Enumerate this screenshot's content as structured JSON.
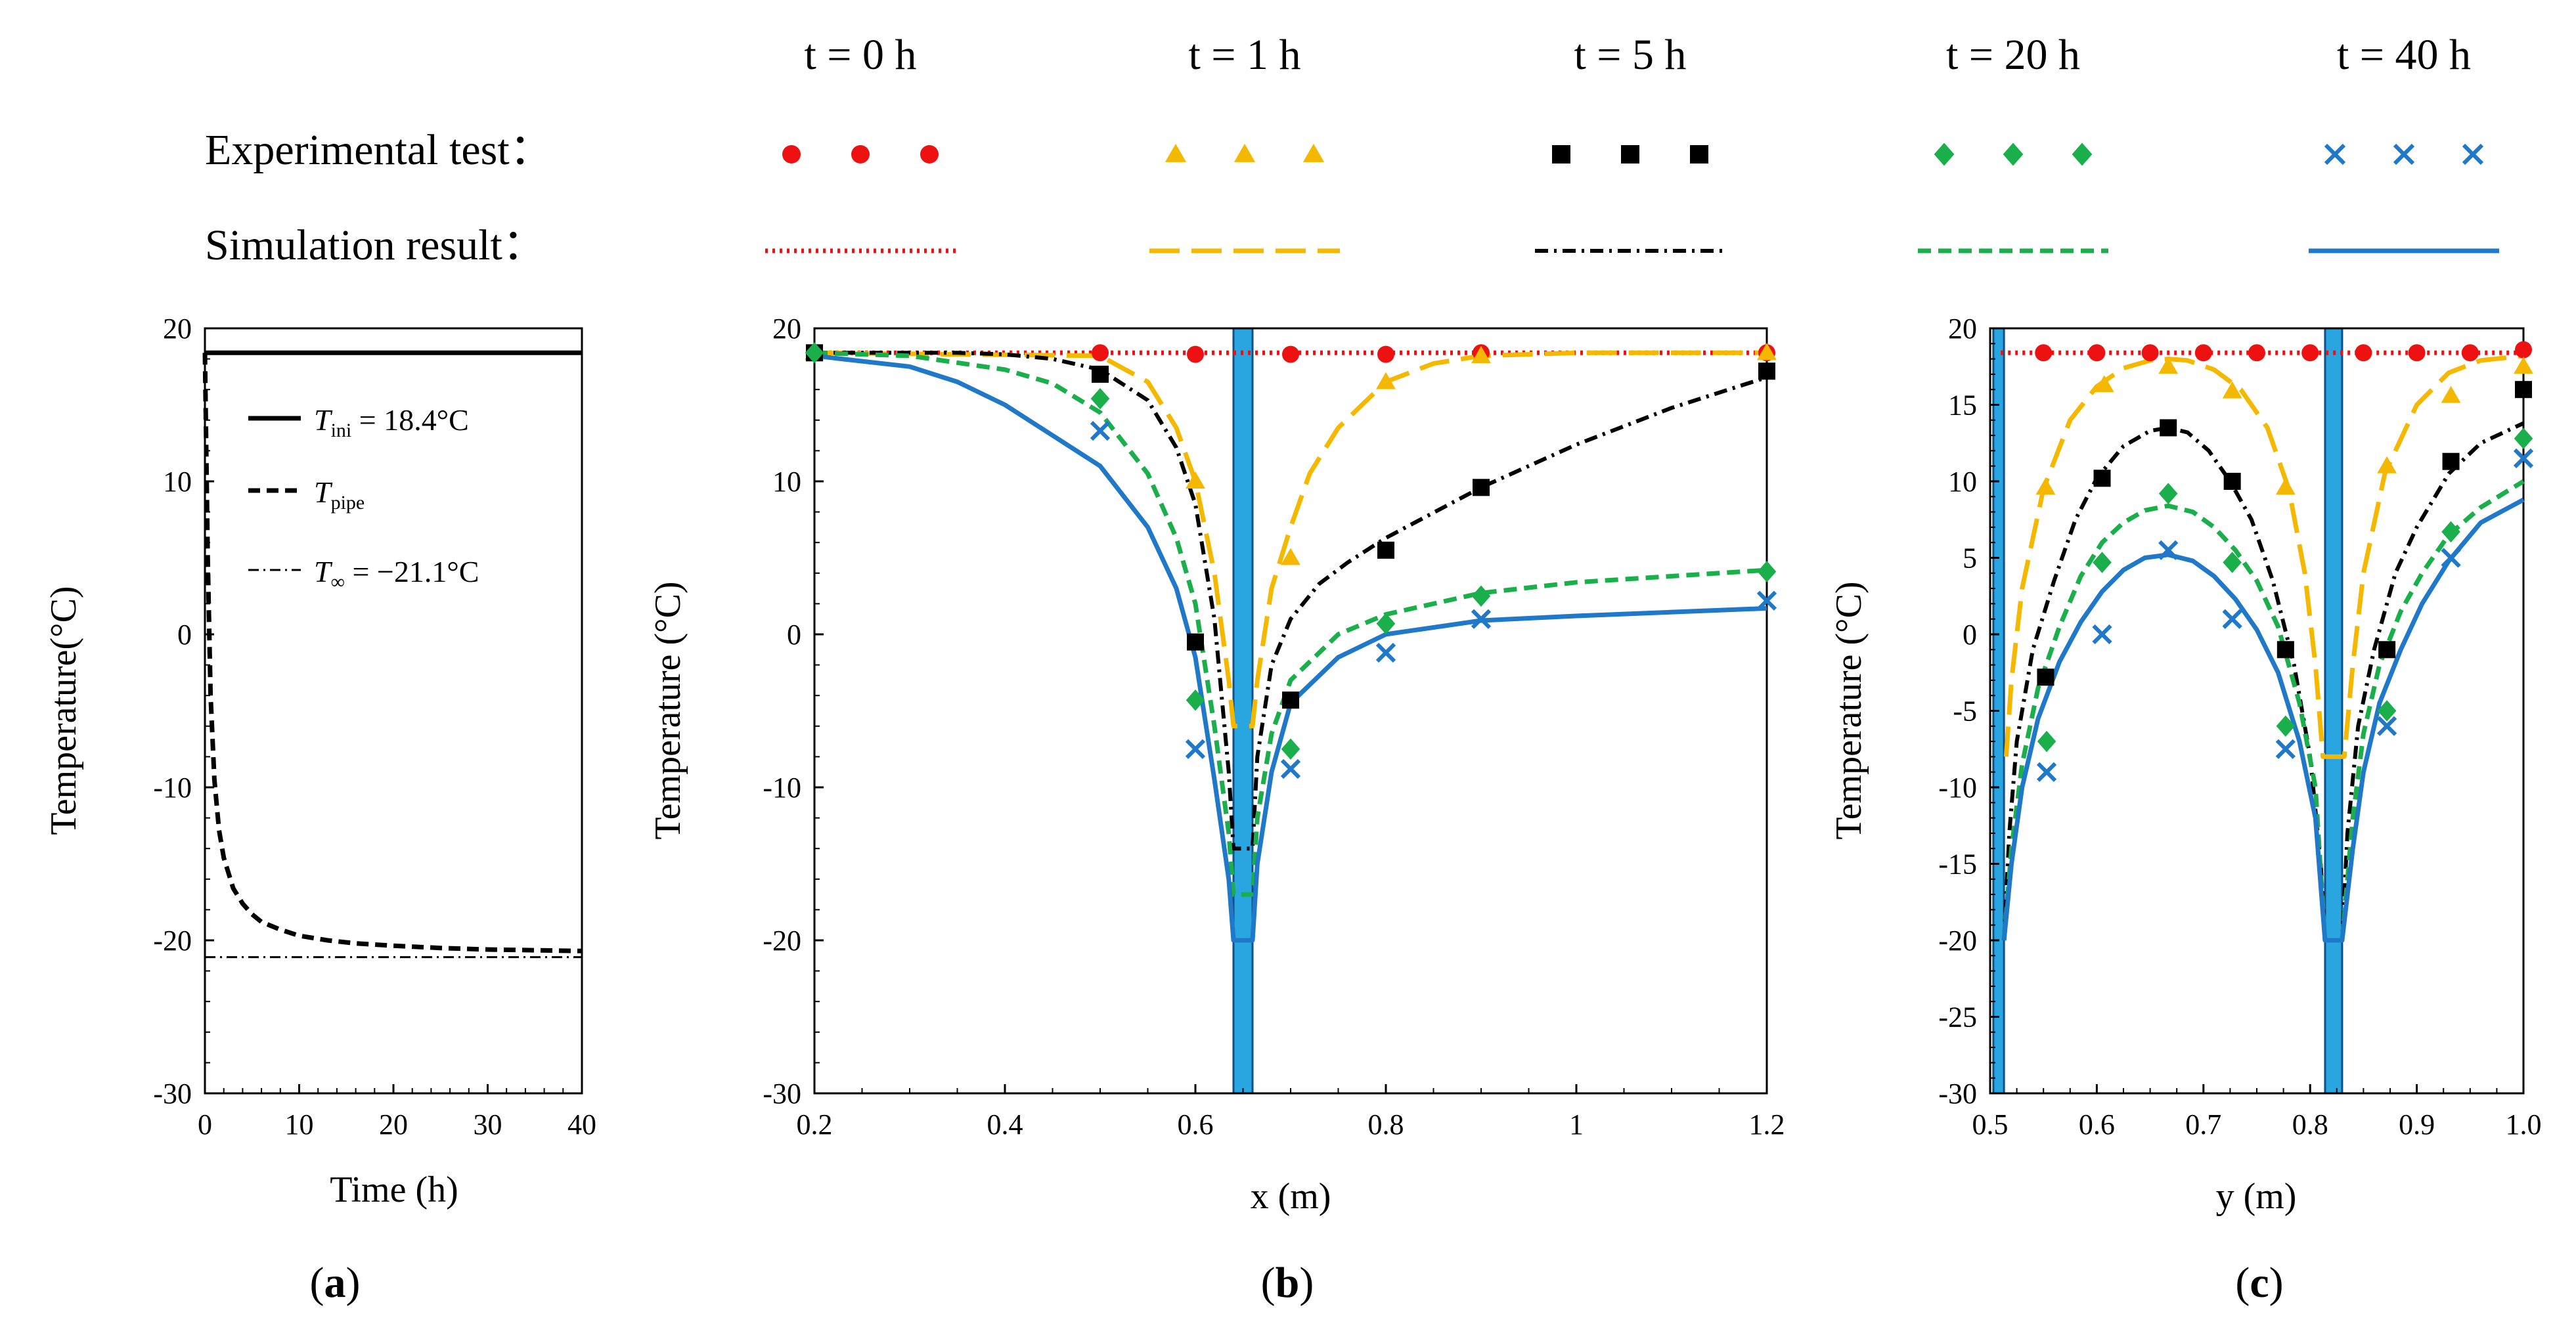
{
  "legend": {
    "time_labels": [
      "t = 0 h",
      "t = 1 h",
      "t = 5 h",
      "t = 20 h",
      "t = 40 h"
    ],
    "experimental_label": "Experimental test：",
    "simulation_label": "Simulation result：",
    "colors": [
      "#ee1111",
      "#f5b800",
      "#000000",
      "#1aaf4b",
      "#1f78c8"
    ],
    "markers": [
      "circle",
      "triangle",
      "square",
      "diamond",
      "cross"
    ],
    "line_styles": [
      "dotted",
      "long-dash",
      "dash-dot",
      "dashed",
      "solid"
    ]
  },
  "panel_labels": [
    "(a)",
    "(b)",
    "(c)"
  ],
  "chart_data": [
    {
      "type": "line",
      "panel": "(a)",
      "xlabel": "Time (h)",
      "ylabel": "Temperature(°C)",
      "xlim": [
        0,
        40
      ],
      "ylim": [
        -30,
        20
      ],
      "xticks": [
        "0",
        "10",
        "20",
        "30",
        "40"
      ],
      "yticks": [
        "20",
        "10",
        "0",
        "-10",
        "-20",
        "-30"
      ],
      "grid": false,
      "legend_position": "top-right",
      "series": [
        {
          "name": "T_ini = 18.4°C",
          "label_main": "T",
          "label_sub": "ini",
          "label_rest": " = 18.4°C",
          "style": "solid",
          "x": [
            0,
            40
          ],
          "y": [
            18.4,
            18.4
          ]
        },
        {
          "name": "T_pipe",
          "label_main": "T",
          "label_sub": "pipe",
          "label_rest": "",
          "style": "dashed",
          "x": [
            0,
            0.3,
            0.6,
            1,
            1.5,
            2,
            3,
            4,
            5,
            6,
            8,
            10,
            13,
            16,
            20,
            25,
            30,
            35,
            40
          ],
          "y": [
            18.4,
            5,
            -4,
            -9.5,
            -12.8,
            -14.6,
            -16.6,
            -17.6,
            -18.3,
            -18.8,
            -19.3,
            -19.7,
            -20.0,
            -20.2,
            -20.35,
            -20.5,
            -20.6,
            -20.65,
            -20.7
          ]
        },
        {
          "name": "T_∞ = −21.1°C",
          "label_main": "T",
          "label_sub": "∞",
          "label_rest": " = −21.1°C",
          "style": "dash-dot",
          "x": [
            0,
            40
          ],
          "y": [
            -21.1,
            -21.1
          ]
        }
      ]
    },
    {
      "type": "line",
      "panel": "(b)",
      "xlabel": "x (m)",
      "ylabel": "Temperature (°C)",
      "xlim": [
        0.2,
        1.2
      ],
      "ylim": [
        -30,
        20
      ],
      "xticks": [
        "0.2",
        "0.4",
        "0.6",
        "0.8",
        "1",
        "1.2"
      ],
      "yticks": [
        "20",
        "10",
        "0",
        "-10",
        "-20",
        "-30"
      ],
      "grid": false,
      "pipes": [
        [
          0.64,
          0.66
        ]
      ],
      "series": [
        {
          "name": "t = 0 h",
          "sim_x": [
            0.2,
            1.2
          ],
          "sim_y": [
            18.4,
            18.4
          ],
          "exp_x": [
            0.2,
            0.5,
            0.6,
            0.7,
            0.8,
            0.9,
            1.2
          ],
          "exp_y": [
            18.4,
            18.4,
            18.3,
            18.3,
            18.3,
            18.4,
            18.4
          ]
        },
        {
          "name": "t = 1 h",
          "sim_x": [
            0.2,
            0.5,
            0.55,
            0.58,
            0.6,
            0.62,
            0.635,
            0.64,
            0.66,
            0.665,
            0.68,
            0.7,
            0.72,
            0.75,
            0.8,
            0.85,
            0.9,
            1.0,
            1.2
          ],
          "sim_y": [
            18.4,
            18.2,
            16.5,
            13.5,
            10,
            4,
            -3,
            -6,
            -6,
            -3,
            3,
            7,
            10.5,
            13.5,
            16.5,
            17.7,
            18.2,
            18.4,
            18.4
          ],
          "exp_x": [
            0.2,
            0.6,
            0.7,
            0.8,
            0.9,
            1.2
          ],
          "exp_y": [
            18.4,
            10,
            5,
            16.5,
            18.2,
            18.4
          ]
        },
        {
          "name": "t = 5 h",
          "sim_x": [
            0.2,
            0.35,
            0.4,
            0.45,
            0.5,
            0.55,
            0.58,
            0.6,
            0.62,
            0.635,
            0.64,
            0.66,
            0.665,
            0.68,
            0.7,
            0.73,
            0.76,
            0.8,
            0.9,
            1.0,
            1.1,
            1.2
          ],
          "sim_y": [
            18.4,
            18.4,
            18.3,
            18.0,
            17.3,
            15.3,
            12.2,
            8.5,
            1,
            -9,
            -14,
            -14,
            -8,
            -2,
            1,
            3.3,
            4.7,
            6.3,
            9.6,
            12.4,
            14.8,
            16.8
          ],
          "exp_x": [
            0.2,
            0.5,
            0.6,
            0.7,
            0.8,
            0.9,
            1.2
          ],
          "exp_y": [
            18.4,
            17,
            -0.5,
            -4.3,
            5.5,
            9.6,
            17.2
          ]
        },
        {
          "name": "t = 20 h",
          "sim_x": [
            0.2,
            0.3,
            0.4,
            0.45,
            0.5,
            0.55,
            0.58,
            0.6,
            0.62,
            0.635,
            0.64,
            0.66,
            0.665,
            0.68,
            0.7,
            0.75,
            0.8,
            0.9,
            1.0,
            1.2
          ],
          "sim_y": [
            18.4,
            18.2,
            17.3,
            16.4,
            14.5,
            10.5,
            6.3,
            2,
            -6,
            -13,
            -17,
            -17,
            -12,
            -6.5,
            -3,
            0,
            1.3,
            2.7,
            3.4,
            4.2
          ],
          "exp_x": [
            0.2,
            0.5,
            0.6,
            0.7,
            0.8,
            0.9,
            1.2
          ],
          "exp_y": [
            18.4,
            15.4,
            -4.3,
            -7.5,
            0.7,
            2.5,
            4.1
          ]
        },
        {
          "name": "t = 40 h",
          "sim_x": [
            0.2,
            0.3,
            0.35,
            0.4,
            0.45,
            0.5,
            0.55,
            0.58,
            0.6,
            0.62,
            0.635,
            0.64,
            0.66,
            0.665,
            0.68,
            0.7,
            0.75,
            0.8,
            0.9,
            1.0,
            1.2
          ],
          "sim_y": [
            18.2,
            17.5,
            16.5,
            15,
            13,
            11,
            7,
            3,
            -1.5,
            -9.5,
            -16,
            -20,
            -20,
            -15,
            -9,
            -4.5,
            -1.5,
            0,
            0.9,
            1.2,
            1.7
          ],
          "exp_x": [
            0.5,
            0.6,
            0.7,
            0.8,
            0.9,
            1.2
          ],
          "exp_y": [
            13.3,
            -7.5,
            -8.8,
            -1.2,
            1.0,
            2.2
          ]
        }
      ]
    },
    {
      "type": "line",
      "panel": "(c)",
      "xlabel": "y (m)",
      "ylabel": "Temperature (°C)",
      "xlim": [
        0.5,
        1.0
      ],
      "ylim": [
        -30,
        20
      ],
      "xticks": [
        "0.5",
        "0.6",
        "0.7",
        "0.8",
        "0.9",
        "1.0"
      ],
      "yticks": [
        "20",
        "15",
        "10",
        "5",
        "0",
        "-5",
        "-10",
        "-15",
        "-20",
        "-25",
        "-30"
      ],
      "grid": false,
      "pipes": [
        [
          0.503,
          0.513
        ],
        [
          0.814,
          0.83
        ]
      ],
      "series": [
        {
          "name": "t = 0 h",
          "sim_x": [
            0.51,
            1.0
          ],
          "sim_y": [
            18.4,
            18.4
          ],
          "exp_x": [
            0.55,
            0.6,
            0.65,
            0.7,
            0.75,
            0.8,
            0.85,
            0.9,
            0.95,
            1.0
          ],
          "exp_y": [
            18.4,
            18.4,
            18.4,
            18.4,
            18.4,
            18.4,
            18.4,
            18.4,
            18.4,
            18.6
          ]
        },
        {
          "name": "t = 1 h",
          "sim_x": [
            0.515,
            0.52,
            0.53,
            0.55,
            0.575,
            0.6,
            0.625,
            0.65,
            0.667,
            0.685,
            0.71,
            0.735,
            0.76,
            0.78,
            0.795,
            0.805,
            0.812,
            0.832,
            0.84,
            0.85,
            0.87,
            0.9,
            0.93,
            0.96,
            1.0
          ],
          "sim_y": [
            -8,
            -3,
            3,
            9.5,
            14,
            16.2,
            17.4,
            17.9,
            18.0,
            17.9,
            17.3,
            16,
            13.5,
            9.5,
            4,
            -2,
            -8,
            -8,
            -2,
            4,
            10.5,
            15,
            17.1,
            17.9,
            18.2
          ],
          "exp_x": [
            0.552,
            0.607,
            0.667,
            0.727,
            0.777,
            0.872,
            0.932,
            1.0
          ],
          "exp_y": [
            9.6,
            16.3,
            17.5,
            15.9,
            9.6,
            11.0,
            15.6,
            17.5
          ]
        },
        {
          "name": "t = 5 h",
          "sim_x": [
            0.513,
            0.518,
            0.525,
            0.54,
            0.56,
            0.58,
            0.6,
            0.625,
            0.65,
            0.667,
            0.685,
            0.705,
            0.725,
            0.745,
            0.765,
            0.785,
            0.8,
            0.81,
            0.814,
            0.83,
            0.835,
            0.845,
            0.86,
            0.88,
            0.9,
            0.93,
            0.96,
            1.0
          ],
          "sim_y": [
            -20,
            -13,
            -7,
            -1,
            3.5,
            7.5,
            10.2,
            12.3,
            13.3,
            13.5,
            13.2,
            12,
            10,
            7.5,
            3.5,
            -2,
            -8,
            -15,
            -20,
            -20,
            -13,
            -6,
            -1,
            4,
            7,
            10.5,
            12.5,
            13.8
          ],
          "exp_x": [
            0.552,
            0.605,
            0.667,
            0.727,
            0.777,
            0.872,
            0.932,
            1.0
          ],
          "exp_y": [
            -2.8,
            10.2,
            13.5,
            10,
            -1,
            -1,
            11.3,
            16
          ]
        },
        {
          "name": "t = 20 h",
          "sim_x": [
            0.513,
            0.52,
            0.53,
            0.545,
            0.565,
            0.585,
            0.605,
            0.625,
            0.645,
            0.667,
            0.69,
            0.71,
            0.73,
            0.75,
            0.77,
            0.79,
            0.805,
            0.814,
            0.83,
            0.84,
            0.85,
            0.865,
            0.885,
            0.905,
            0.93,
            0.96,
            1.0
          ],
          "sim_y": [
            -20,
            -14,
            -8.5,
            -3.5,
            0.5,
            3.8,
            6,
            7.3,
            8.1,
            8.4,
            8,
            7,
            5.5,
            3.5,
            0.5,
            -4.5,
            -10,
            -20,
            -20,
            -12,
            -6.5,
            -2,
            1.5,
            4,
            6.5,
            8.3,
            10
          ],
          "exp_x": [
            0.553,
            0.605,
            0.667,
            0.727,
            0.777,
            0.872,
            0.932,
            1.0
          ],
          "exp_y": [
            -7,
            4.7,
            9.2,
            4.7,
            -6,
            -5,
            6.7,
            12.8
          ]
        },
        {
          "name": "t = 40 h",
          "sim_x": [
            0.513,
            0.52,
            0.53,
            0.545,
            0.565,
            0.585,
            0.605,
            0.625,
            0.645,
            0.667,
            0.69,
            0.71,
            0.73,
            0.75,
            0.77,
            0.79,
            0.805,
            0.814,
            0.83,
            0.84,
            0.85,
            0.865,
            0.885,
            0.905,
            0.93,
            0.96,
            1.0
          ],
          "sim_y": [
            -20,
            -15,
            -10,
            -5.5,
            -1.8,
            0.8,
            2.8,
            4.2,
            5,
            5.2,
            4.8,
            3.8,
            2.3,
            0.3,
            -2.5,
            -7,
            -12,
            -20,
            -20,
            -14,
            -9,
            -4.5,
            -1,
            2,
            4.8,
            7.3,
            8.8
          ],
          "exp_x": [
            0.553,
            0.605,
            0.667,
            0.727,
            0.777,
            0.872,
            0.932,
            1.0
          ],
          "exp_y": [
            -9,
            0,
            5.5,
            1,
            -7.5,
            -6,
            5,
            11.5
          ]
        }
      ]
    }
  ]
}
